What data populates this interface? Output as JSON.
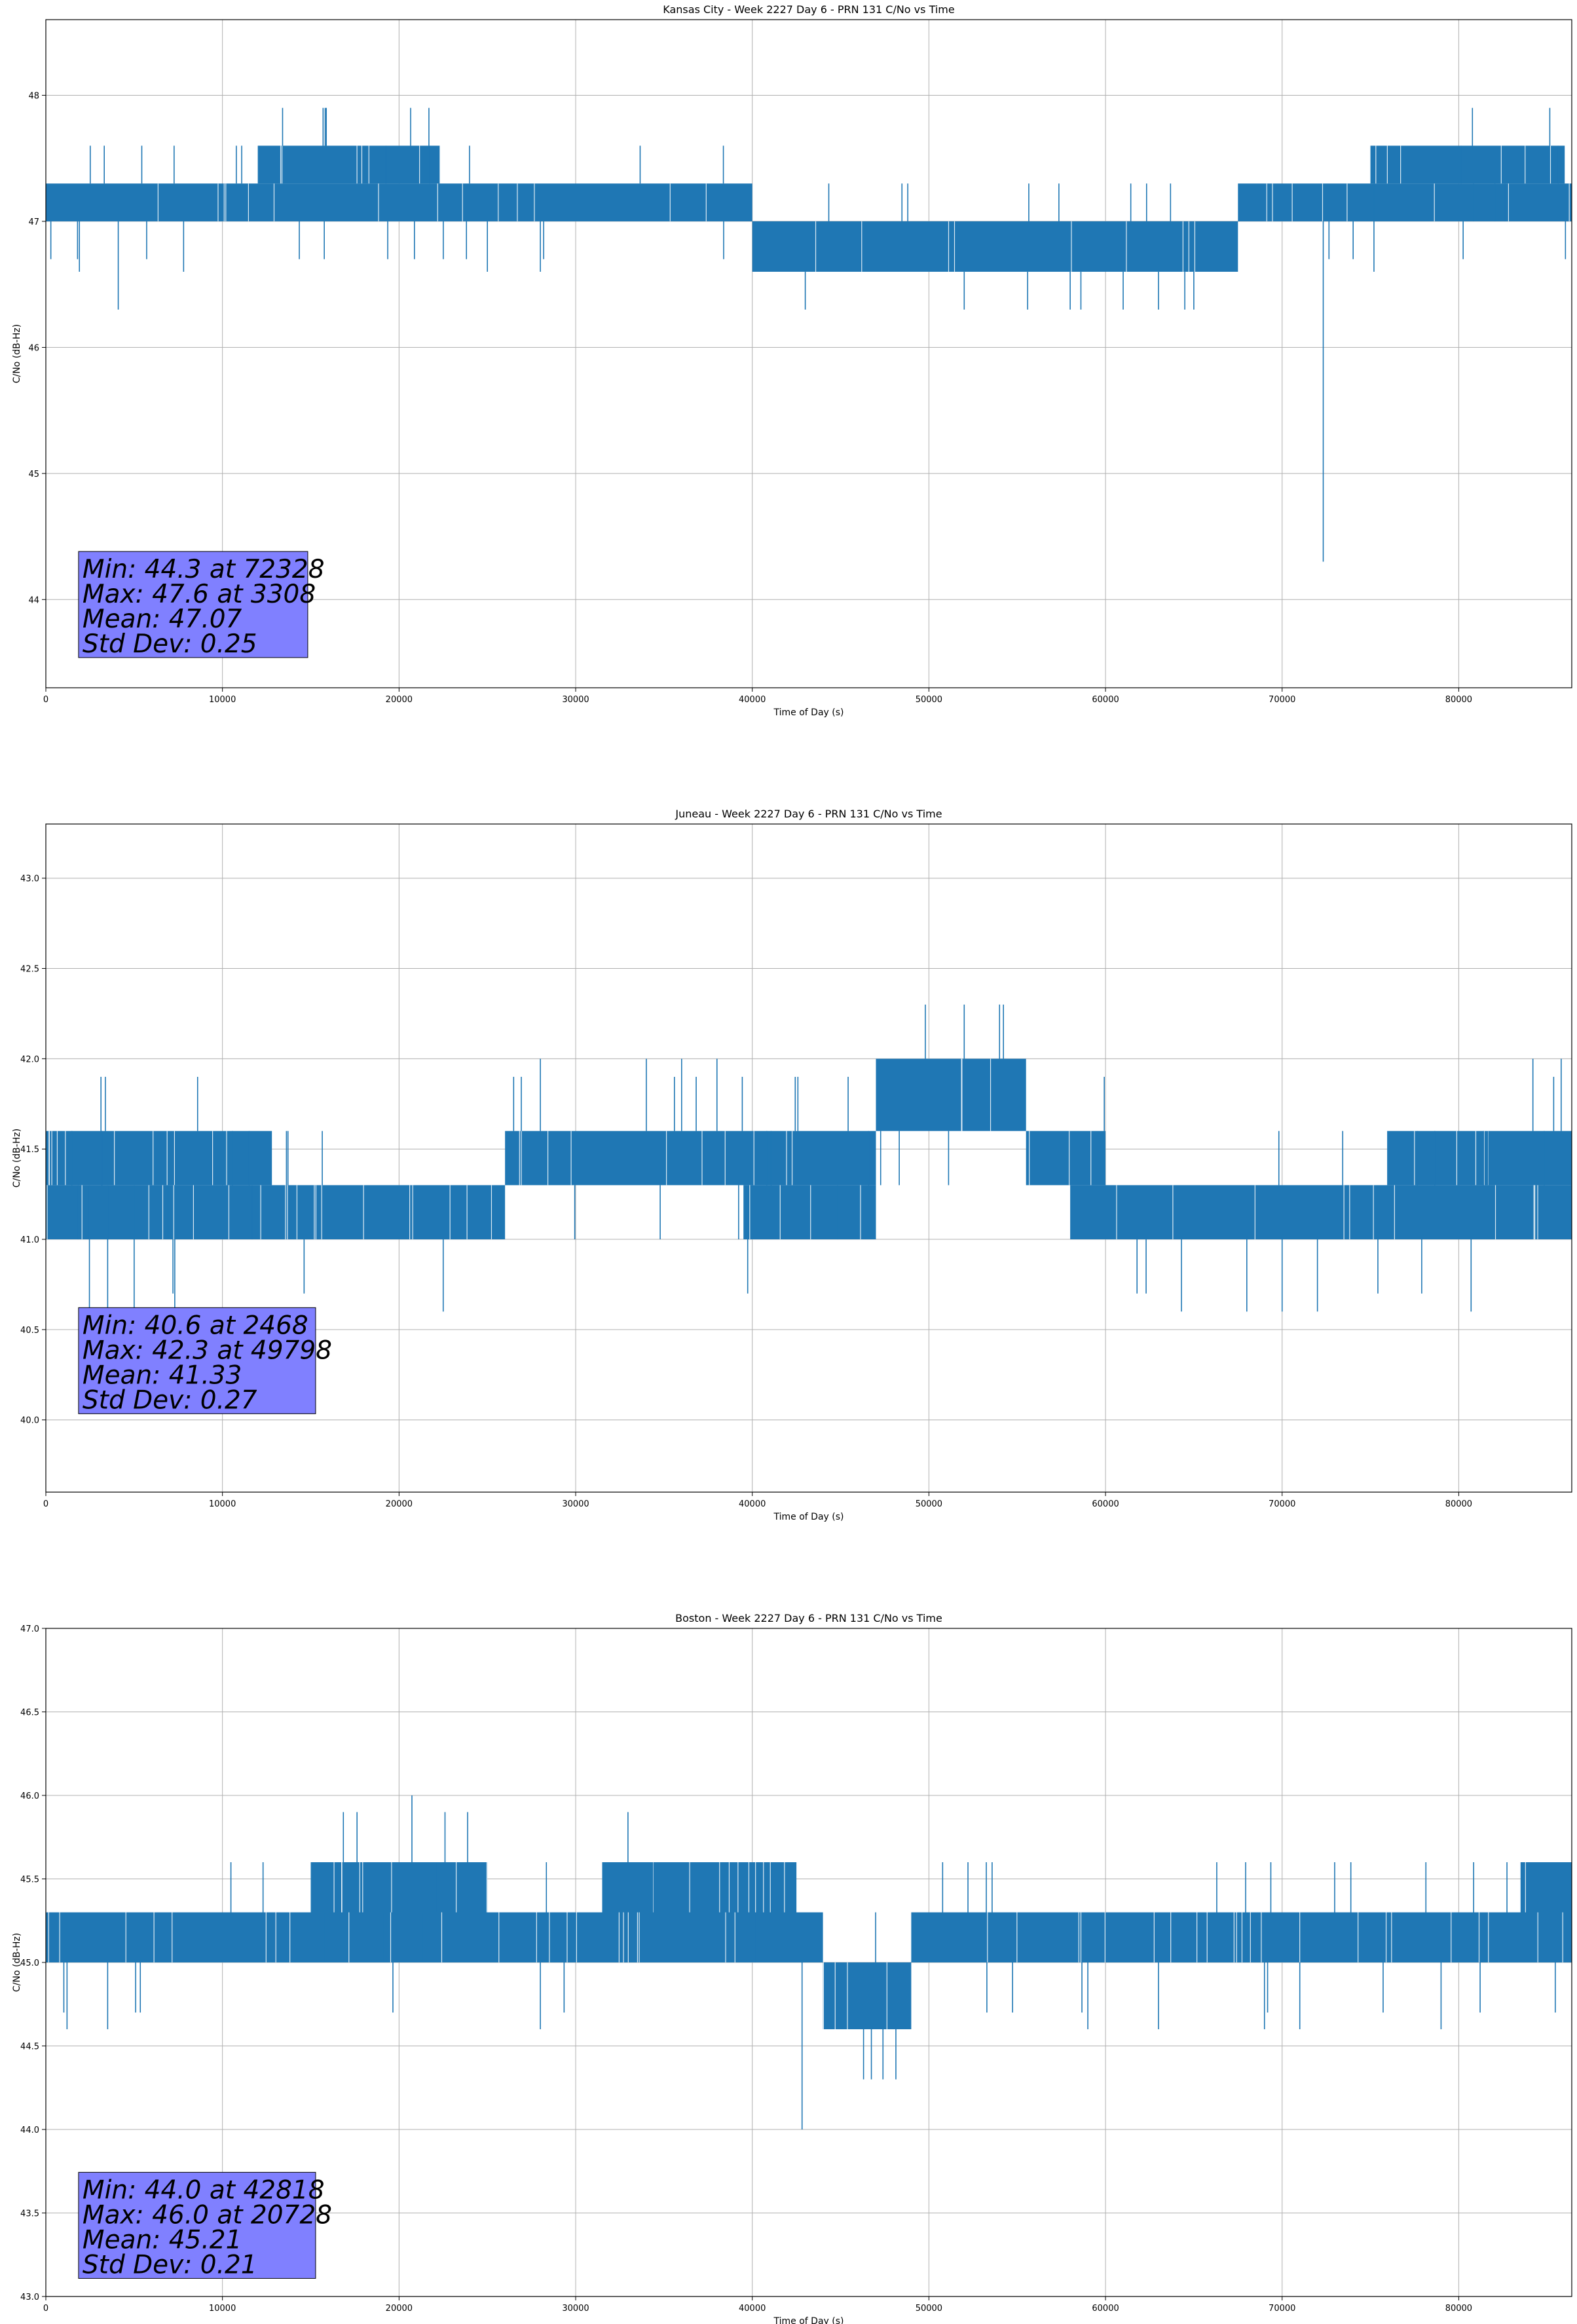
{
  "chart_data": [
    {
      "type": "line",
      "title": "Kansas City - Week 2227 Day 6 - PRN 131 C/No vs Time",
      "xlabel": "Time of Day (s)",
      "ylabel": "C/No (dB-Hz)",
      "xlim": [
        0,
        86400
      ],
      "ylim": [
        43.3,
        48.6
      ],
      "xticks": [
        0,
        10000,
        20000,
        30000,
        40000,
        50000,
        60000,
        70000,
        80000
      ],
      "yticks": [
        44,
        45,
        46,
        47,
        48
      ],
      "ytick_labels": [
        "44",
        "45",
        "46",
        "47",
        "48"
      ],
      "grid": true,
      "color": "#1f77b4",
      "series": [
        {
          "name": "C/No",
          "bands": [
            {
              "x0": 0,
              "x1": 40000,
              "low": 47.0,
              "high": 47.3
            },
            {
              "x0": 12000,
              "x1": 22300,
              "low": 47.3,
              "high": 47.6
            },
            {
              "x0": 40000,
              "x1": 67500,
              "low": 46.6,
              "high": 47.0
            },
            {
              "x0": 67500,
              "x1": 86400,
              "low": 47.0,
              "high": 47.3
            },
            {
              "x0": 75000,
              "x1": 86000,
              "low": 47.3,
              "high": 47.6
            }
          ],
          "points": [
            [
              0,
              47.2
            ],
            [
              3308,
              47.6
            ],
            [
              4100,
              46.3
            ],
            [
              7800,
              46.6
            ],
            [
              1900,
              46.6
            ],
            [
              25000,
              46.6
            ],
            [
              28000,
              46.6
            ],
            [
              43000,
              46.3
            ],
            [
              52000,
              46.3
            ],
            [
              58000,
              46.3
            ],
            [
              61000,
              46.3
            ],
            [
              63000,
              46.3
            ],
            [
              65000,
              46.3
            ],
            [
              69000,
              47.3
            ],
            [
              72328,
              44.3
            ],
            [
              72600,
              47.1
            ],
            [
              75200,
              46.6
            ],
            [
              86400,
              47.1
            ]
          ]
        }
      ],
      "stats": {
        "min": "Min: 44.3 at 72328",
        "max": "Max: 47.6 at 3308",
        "mean": "Mean: 47.07",
        "std": "Std Dev: 0.25"
      },
      "stats_value_anchor": [
        2000,
        44.35
      ]
    },
    {
      "type": "line",
      "title": "Juneau - Week 2227 Day 6 - PRN 131 C/No vs Time",
      "xlabel": "Time of Day (s)",
      "ylabel": "C/No (dB-Hz)",
      "xlim": [
        0,
        86400
      ],
      "ylim": [
        39.6,
        43.3
      ],
      "xticks": [
        0,
        10000,
        20000,
        30000,
        40000,
        50000,
        60000,
        70000,
        80000
      ],
      "yticks": [
        40.0,
        40.5,
        41.0,
        41.5,
        42.0,
        42.5,
        43.0
      ],
      "ytick_labels": [
        "40.0",
        "40.5",
        "41.0",
        "41.5",
        "42.0",
        "42.5",
        "43.0"
      ],
      "grid": true,
      "color": "#1f77b4",
      "series": [
        {
          "name": "C/No",
          "bands": [
            {
              "x0": 0,
              "x1": 26000,
              "low": 41.0,
              "high": 41.3
            },
            {
              "x0": 0,
              "x1": 12800,
              "low": 41.3,
              "high": 41.6
            },
            {
              "x0": 26000,
              "x1": 47000,
              "low": 41.3,
              "high": 41.6
            },
            {
              "x0": 39500,
              "x1": 47000,
              "low": 41.0,
              "high": 41.3
            },
            {
              "x0": 47000,
              "x1": 55500,
              "low": 41.6,
              "high": 42.0
            },
            {
              "x0": 55500,
              "x1": 60000,
              "low": 41.3,
              "high": 41.6
            },
            {
              "x0": 58000,
              "x1": 86400,
              "low": 41.0,
              "high": 41.3
            },
            {
              "x0": 76000,
              "x1": 86400,
              "low": 41.3,
              "high": 41.6
            }
          ],
          "points": [
            [
              0,
              41.4
            ],
            [
              2468,
              40.6
            ],
            [
              3500,
              40.6
            ],
            [
              5000,
              40.6
            ],
            [
              7300,
              40.6
            ],
            [
              22500,
              40.6
            ],
            [
              28000,
              42.0
            ],
            [
              34000,
              42.0
            ],
            [
              36000,
              42.0
            ],
            [
              38000,
              42.0
            ],
            [
              47000,
              42.0
            ],
            [
              49798,
              42.3
            ],
            [
              52000,
              42.3
            ],
            [
              54000,
              42.3
            ],
            [
              64300,
              40.6
            ],
            [
              68000,
              40.6
            ],
            [
              70000,
              40.6
            ],
            [
              72000,
              40.6
            ],
            [
              80700,
              40.6
            ],
            [
              84200,
              42.0
            ],
            [
              85800,
              42.0
            ],
            [
              86400,
              41.4
            ]
          ]
        }
      ],
      "stats": {
        "min": "Min: 40.6 at 2468",
        "max": "Max: 42.3 at 49798",
        "mean": "Mean: 41.33",
        "std": "Std Dev: 0.27"
      },
      "stats_value_anchor": [
        2000,
        40.6
      ]
    },
    {
      "type": "line",
      "title": "Boston - Week 2227 Day 6 - PRN 131 C/No vs Time",
      "xlabel": "Time of Day (s)",
      "ylabel": "C/No (dB-Hz)",
      "xlim": [
        0,
        86400
      ],
      "ylim": [
        43.0,
        47.0
      ],
      "xticks": [
        0,
        10000,
        20000,
        30000,
        40000,
        50000,
        60000,
        70000,
        80000
      ],
      "yticks": [
        43.0,
        43.5,
        44.0,
        44.5,
        45.0,
        45.5,
        46.0,
        46.5,
        47.0
      ],
      "ytick_labels": [
        "43.0",
        "43.5",
        "44.0",
        "44.5",
        "45.0",
        "45.5",
        "46.0",
        "46.5",
        "47.0"
      ],
      "grid": true,
      "color": "#1f77b4",
      "series": [
        {
          "name": "C/No",
          "bands": [
            {
              "x0": 0,
              "x1": 44000,
              "low": 45.0,
              "high": 45.3
            },
            {
              "x0": 15000,
              "x1": 25000,
              "low": 45.3,
              "high": 45.6
            },
            {
              "x0": 31500,
              "x1": 42500,
              "low": 45.3,
              "high": 45.6
            },
            {
              "x0": 44000,
              "x1": 49000,
              "low": 44.6,
              "high": 45.0
            },
            {
              "x0": 49000,
              "x1": 86400,
              "low": 45.0,
              "high": 45.3
            },
            {
              "x0": 83500,
              "x1": 86400,
              "low": 45.3,
              "high": 45.6
            }
          ],
          "points": [
            [
              0,
              45.2
            ],
            [
              1200,
              44.6
            ],
            [
              3500,
              44.6
            ],
            [
              20728,
              46.0
            ],
            [
              28000,
              44.6
            ],
            [
              42818,
              44.0
            ],
            [
              46300,
              44.3
            ],
            [
              47400,
              44.3
            ],
            [
              59000,
              44.6
            ],
            [
              63000,
              44.6
            ],
            [
              69000,
              44.6
            ],
            [
              71000,
              44.6
            ],
            [
              79000,
              44.6
            ],
            [
              86400,
              45.3
            ]
          ]
        }
      ],
      "stats": {
        "min": "Min: 44.0 at 42818",
        "max": "Max: 46.0 at 20728",
        "mean": "Mean: 45.21",
        "std": "Std Dev: 0.21"
      },
      "stats_value_anchor": [
        2000,
        43.72
      ]
    }
  ]
}
